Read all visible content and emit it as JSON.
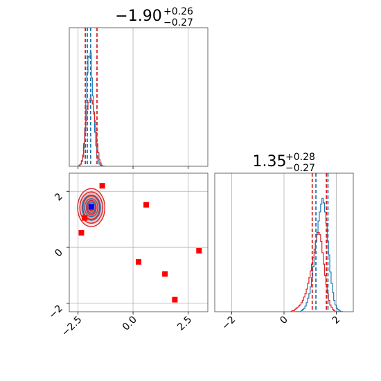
{
  "chart_data": [
    {
      "type": "histogram",
      "panel": "marginal-1",
      "title": {
        "main": "−1.90",
        "sup": "+0.26",
        "sub": "−0.27"
      },
      "xlim": [
        -2.9,
        3.4
      ],
      "x_ticks": [
        -2.5,
        0.0,
        2.5
      ],
      "grid": true,
      "series": [
        {
          "color": "#1f77b4",
          "bins": [
            -2.5,
            -2.45,
            -2.4,
            -2.35,
            -2.3,
            -2.25,
            -2.2,
            -2.15,
            -2.1,
            -2.05,
            -2.0,
            -1.95,
            -1.9,
            -1.85,
            -1.8,
            -1.75,
            -1.7,
            -1.65,
            -1.6,
            -1.55,
            -1.5,
            -1.45,
            -1.4,
            -1.35,
            -1.3
          ],
          "counts": [
            0,
            0.01,
            0.02,
            0.04,
            0.08,
            0.16,
            0.34,
            0.58,
            0.82,
            0.97,
            0.96,
            1.0,
            0.78,
            0.62,
            0.46,
            0.3,
            0.18,
            0.09,
            0.05,
            0.02,
            0.01,
            0,
            0,
            0,
            0
          ]
        },
        {
          "color": "#d62728",
          "bins": [
            -2.5,
            -2.45,
            -2.4,
            -2.35,
            -2.3,
            -2.25,
            -2.2,
            -2.15,
            -2.1,
            -2.05,
            -2.0,
            -1.95,
            -1.9,
            -1.85,
            -1.8,
            -1.75,
            -1.7,
            -1.65,
            -1.6,
            -1.55,
            -1.5,
            -1.45,
            -1.4,
            -1.35,
            -1.3
          ],
          "counts": [
            0,
            0.01,
            0.02,
            0.05,
            0.1,
            0.2,
            0.3,
            0.4,
            0.5,
            0.56,
            0.58,
            0.6,
            0.58,
            0.55,
            0.48,
            0.4,
            0.3,
            0.2,
            0.12,
            0.06,
            0.03,
            0.01,
            0,
            0,
            0
          ]
        }
      ],
      "quantile_lines": [
        {
          "x": -2.17,
          "color": "#d62728"
        },
        {
          "x": -2.08,
          "color": "#1f77b4"
        },
        {
          "x": -1.93,
          "color": "#1f77b4"
        },
        {
          "x": -1.64,
          "color": "#d62728"
        }
      ]
    },
    {
      "type": "scatter",
      "panel": "joint",
      "xlim": [
        -2.9,
        3.4
      ],
      "ylim": [
        -2.3,
        2.65
      ],
      "x_ticks": [
        -2.5,
        0.0,
        2.5
      ],
      "y_ticks": [
        -2,
        0,
        2
      ],
      "grid": true,
      "contours": {
        "center": [
          -1.9,
          1.42
        ],
        "red_levels": [
          [
            0.62,
            0.68
          ],
          [
            0.52,
            0.56
          ],
          [
            0.38,
            0.42
          ],
          [
            0.22,
            0.26
          ],
          [
            0.1,
            0.12
          ]
        ],
        "blue_levels": [
          [
            0.42,
            0.45
          ],
          [
            0.3,
            0.32
          ],
          [
            0.18,
            0.2
          ]
        ]
      },
      "points_red": [
        [
          -1.4,
          2.2
        ],
        [
          0.6,
          1.52
        ],
        [
          -2.2,
          1.05
        ],
        [
          -2.35,
          0.52
        ],
        [
          0.25,
          -0.52
        ],
        [
          1.45,
          -0.95
        ],
        [
          3.0,
          -0.12
        ],
        [
          1.9,
          -1.87
        ]
      ],
      "point_blue": [
        -1.9,
        1.45
      ]
    },
    {
      "type": "histogram",
      "panel": "marginal-2",
      "title": {
        "main": "1.35",
        "sup": "+0.28",
        "sub": "−0.27"
      },
      "xlim": [
        -2.65,
        2.65
      ],
      "x_ticks": [
        -2,
        0,
        2
      ],
      "grid": true,
      "series": [
        {
          "color": "#1f77b4",
          "bins": [
            0.25,
            0.3,
            0.35,
            0.4,
            0.45,
            0.5,
            0.55,
            0.6,
            0.65,
            0.7,
            0.75,
            0.8,
            0.85,
            0.9,
            0.95,
            1.0,
            1.05,
            1.1,
            1.15,
            1.2,
            1.25,
            1.3,
            1.35,
            1.4,
            1.45,
            1.5,
            1.55,
            1.6,
            1.65,
            1.7,
            1.75,
            1.8,
            1.85,
            1.9,
            1.95,
            2.0,
            2.05,
            2.1,
            2.15,
            2.2,
            2.25
          ],
          "counts": [
            0,
            0,
            0,
            0,
            0,
            0,
            0,
            0,
            0.01,
            0.02,
            0.03,
            0.05,
            0.08,
            0.12,
            0.16,
            0.22,
            0.3,
            0.4,
            0.52,
            0.62,
            0.7,
            0.8,
            0.88,
            0.95,
            1.0,
            0.96,
            0.88,
            0.78,
            0.62,
            0.5,
            0.35,
            0.25,
            0.17,
            0.1,
            0.06,
            0.03,
            0.02,
            0.01,
            0,
            0
          ]
        },
        {
          "color": "#d62728",
          "bins": [
            0.25,
            0.3,
            0.35,
            0.4,
            0.45,
            0.5,
            0.55,
            0.6,
            0.65,
            0.7,
            0.75,
            0.8,
            0.85,
            0.9,
            0.95,
            1.0,
            1.05,
            1.1,
            1.15,
            1.2,
            1.25,
            1.3,
            1.35,
            1.4,
            1.45,
            1.5,
            1.55,
            1.6,
            1.65,
            1.7,
            1.75,
            1.8,
            1.85,
            1.9,
            1.95,
            2.0,
            2.05,
            2.1,
            2.15,
            2.2,
            2.25
          ],
          "counts": [
            0,
            0.01,
            0.01,
            0.02,
            0.03,
            0.04,
            0.05,
            0.06,
            0.08,
            0.1,
            0.13,
            0.16,
            0.2,
            0.25,
            0.3,
            0.36,
            0.42,
            0.48,
            0.55,
            0.62,
            0.68,
            0.7,
            0.68,
            0.62,
            0.52,
            0.42,
            0.32,
            0.24,
            0.16,
            0.1,
            0.06,
            0.04,
            0.02,
            0.01,
            0,
            0,
            0,
            0,
            0,
            0
          ]
        }
      ],
      "quantile_lines": [
        {
          "x": 1.08,
          "color": "#d62728"
        },
        {
          "x": 1.22,
          "color": "#1f77b4"
        },
        {
          "x": 1.62,
          "color": "#d62728"
        },
        {
          "x": 1.68,
          "color": "#1f77b4"
        }
      ]
    }
  ]
}
